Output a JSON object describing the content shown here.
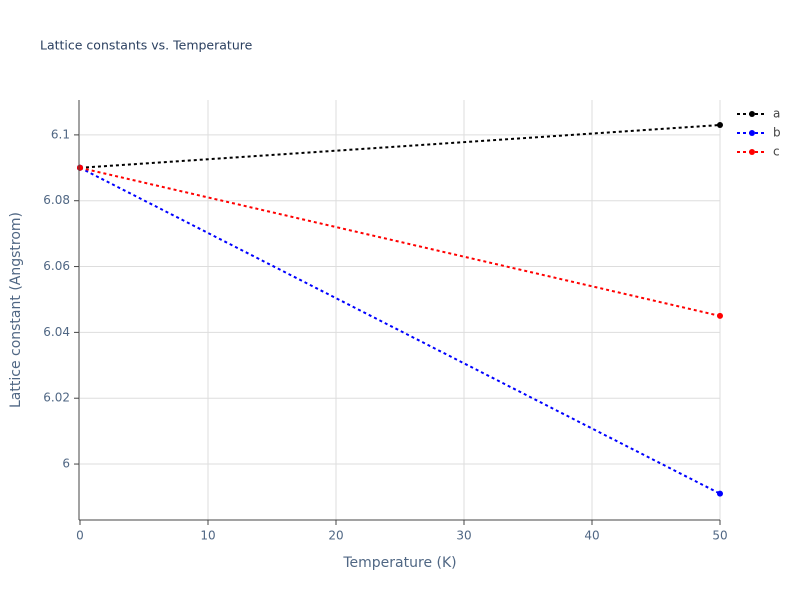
{
  "chart_data": {
    "type": "line",
    "title": "Lattice constants vs. Temperature",
    "x_label": "Temperature (K)",
    "y_label": "Lattice constant (Angstrom)",
    "x": [
      0,
      50
    ],
    "series": [
      {
        "name": "a",
        "color": "#000000",
        "values": [
          6.09,
          6.103
        ]
      },
      {
        "name": "b",
        "color": "#0000ff",
        "values": [
          6.09,
          5.991
        ]
      },
      {
        "name": "c",
        "color": "#ff0000",
        "values": [
          6.09,
          6.045
        ]
      }
    ],
    "xlim": [
      0,
      50
    ],
    "xticks": [
      0,
      10,
      20,
      30,
      40,
      50
    ],
    "ylim": [
      5.983,
      6.1106
    ],
    "yticks": [
      6,
      6.02,
      6.04,
      6.06,
      6.08,
      6.1
    ],
    "grid": true,
    "legend": "right",
    "line_style": "dotted"
  }
}
